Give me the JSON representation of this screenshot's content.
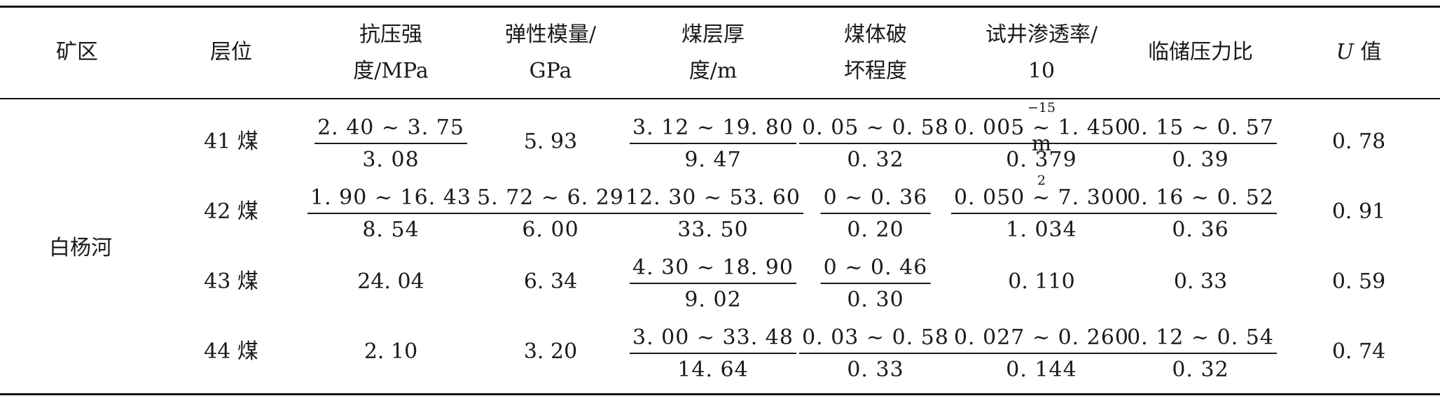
{
  "header": {
    "mine_area": "矿区",
    "seam": "层位",
    "compressive_strength": [
      "抗压强",
      "度/MPa"
    ],
    "elastic_modulus": [
      "弹性模量/",
      "GPa"
    ],
    "thickness": [
      "煤层厚",
      "度/m"
    ],
    "damage": [
      "煤体破",
      "坏程度"
    ],
    "permeability": [
      "试井渗透率/",
      "10",
      "−15",
      " m",
      "2"
    ],
    "pressure_ratio": "临储压力比",
    "u_value": [
      "U",
      " 值"
    ]
  },
  "area_name": "白杨河",
  "rows": [
    {
      "seam": "41 煤",
      "strength": {
        "range": "2. 40 ~ 3. 75",
        "avg": "3. 08"
      },
      "modulus": "5. 93",
      "thickness": {
        "range": "3. 12 ~ 19. 80",
        "avg": "9. 47"
      },
      "damage": {
        "range": "0. 05 ~ 0. 58",
        "avg": "0. 32"
      },
      "permeability": {
        "range": "0. 005 ~ 1. 450",
        "avg": "0. 379"
      },
      "pressure_ratio": {
        "range": "0. 15 ~ 0. 57",
        "avg": "0. 39"
      },
      "u": "0. 78"
    },
    {
      "seam": "42 煤",
      "strength": {
        "range": "1. 90 ~ 16. 43",
        "avg": "8. 54"
      },
      "modulus": {
        "range": "5. 72 ~ 6. 29",
        "avg": "6. 00"
      },
      "thickness": {
        "range": "12. 30 ~ 53. 60",
        "avg": "33. 50"
      },
      "damage": {
        "range": "0 ~ 0. 36",
        "avg": "0. 20"
      },
      "permeability": {
        "range": "0. 050 ~ 7. 300",
        "avg": "1. 034"
      },
      "pressure_ratio": {
        "range": "0. 16 ~ 0. 52",
        "avg": "0. 36"
      },
      "u": "0. 91"
    },
    {
      "seam": "43 煤",
      "strength": "24. 04",
      "modulus": "6. 34",
      "thickness": {
        "range": "4. 30 ~ 18. 90",
        "avg": "9. 02"
      },
      "damage": {
        "range": "0 ~ 0. 46",
        "avg": "0. 30"
      },
      "permeability": "0. 110",
      "pressure_ratio": "0. 33",
      "u": "0. 59"
    },
    {
      "seam": "44 煤",
      "strength": "2. 10",
      "modulus": "3. 20",
      "thickness": {
        "range": "3. 00 ~ 33. 48",
        "avg": "14. 64"
      },
      "damage": {
        "range": "0. 03 ~ 0. 58",
        "avg": "0. 33"
      },
      "permeability": {
        "range": "0. 027 ~ 0. 260",
        "avg": "0. 144"
      },
      "pressure_ratio": {
        "range": "0. 12 ~ 0. 54",
        "avg": "0. 32"
      },
      "u": "0. 74"
    }
  ]
}
